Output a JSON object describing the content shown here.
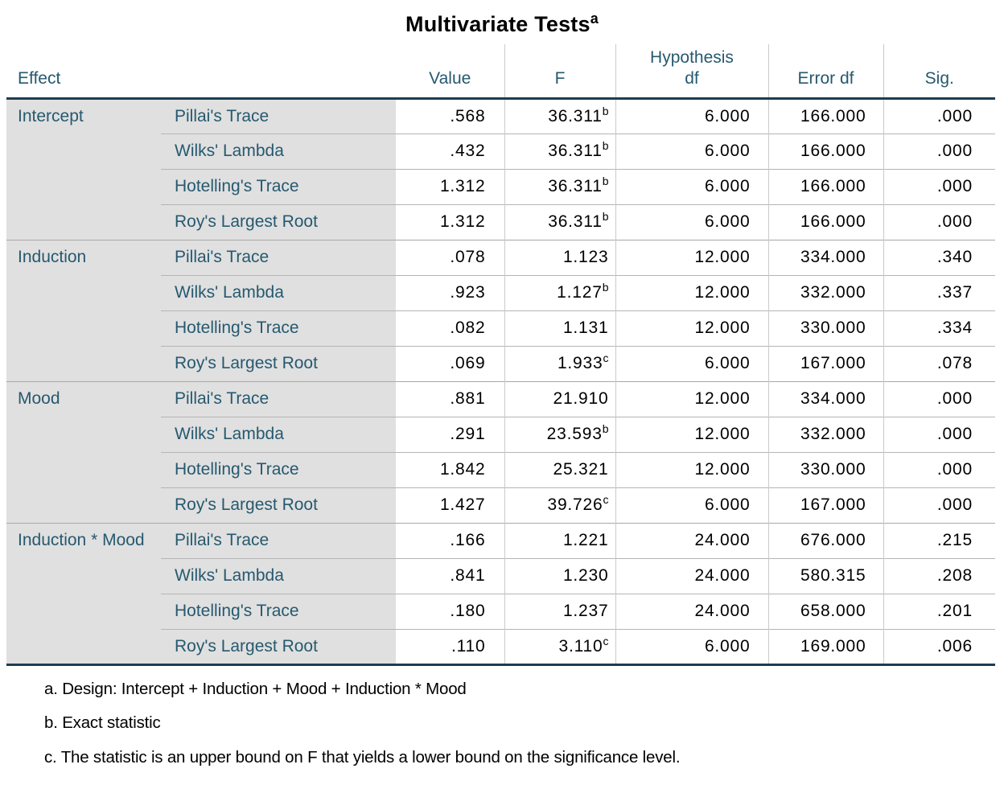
{
  "title": {
    "text": "Multivariate Tests",
    "superscript": "a"
  },
  "columns": {
    "effect": "Effect",
    "value": "Value",
    "f": "F",
    "hypothesis_df_line1": "Hypothesis",
    "hypothesis_df_line2": "df",
    "error_df": "Error df",
    "sig": "Sig."
  },
  "groups": [
    {
      "effect": "Intercept",
      "rows": [
        {
          "test": "Pillai's Trace",
          "value": ".568",
          "f": "36.311",
          "f_sup": "b",
          "hyp_df": "6.000",
          "error_df": "166.000",
          "sig": ".000"
        },
        {
          "test": "Wilks' Lambda",
          "value": ".432",
          "f": "36.311",
          "f_sup": "b",
          "hyp_df": "6.000",
          "error_df": "166.000",
          "sig": ".000"
        },
        {
          "test": "Hotelling's Trace",
          "value": "1.312",
          "f": "36.311",
          "f_sup": "b",
          "hyp_df": "6.000",
          "error_df": "166.000",
          "sig": ".000"
        },
        {
          "test": "Roy's Largest Root",
          "value": "1.312",
          "f": "36.311",
          "f_sup": "b",
          "hyp_df": "6.000",
          "error_df": "166.000",
          "sig": ".000"
        }
      ]
    },
    {
      "effect": "Induction",
      "rows": [
        {
          "test": "Pillai's Trace",
          "value": ".078",
          "f": "1.123",
          "f_sup": "",
          "hyp_df": "12.000",
          "error_df": "334.000",
          "sig": ".340"
        },
        {
          "test": "Wilks' Lambda",
          "value": ".923",
          "f": "1.127",
          "f_sup": "b",
          "hyp_df": "12.000",
          "error_df": "332.000",
          "sig": ".337"
        },
        {
          "test": "Hotelling's Trace",
          "value": ".082",
          "f": "1.131",
          "f_sup": "",
          "hyp_df": "12.000",
          "error_df": "330.000",
          "sig": ".334"
        },
        {
          "test": "Roy's Largest Root",
          "value": ".069",
          "f": "1.933",
          "f_sup": "c",
          "hyp_df": "6.000",
          "error_df": "167.000",
          "sig": ".078"
        }
      ]
    },
    {
      "effect": "Mood",
      "rows": [
        {
          "test": "Pillai's Trace",
          "value": ".881",
          "f": "21.910",
          "f_sup": "",
          "hyp_df": "12.000",
          "error_df": "334.000",
          "sig": ".000"
        },
        {
          "test": "Wilks' Lambda",
          "value": ".291",
          "f": "23.593",
          "f_sup": "b",
          "hyp_df": "12.000",
          "error_df": "332.000",
          "sig": ".000"
        },
        {
          "test": "Hotelling's Trace",
          "value": "1.842",
          "f": "25.321",
          "f_sup": "",
          "hyp_df": "12.000",
          "error_df": "330.000",
          "sig": ".000"
        },
        {
          "test": "Roy's Largest Root",
          "value": "1.427",
          "f": "39.726",
          "f_sup": "c",
          "hyp_df": "6.000",
          "error_df": "167.000",
          "sig": ".000"
        }
      ]
    },
    {
      "effect": "Induction * Mood",
      "rows": [
        {
          "test": "Pillai's Trace",
          "value": ".166",
          "f": "1.221",
          "f_sup": "",
          "hyp_df": "24.000",
          "error_df": "676.000",
          "sig": ".215"
        },
        {
          "test": "Wilks' Lambda",
          "value": ".841",
          "f": "1.230",
          "f_sup": "",
          "hyp_df": "24.000",
          "error_df": "580.315",
          "sig": ".208"
        },
        {
          "test": "Hotelling's Trace",
          "value": ".180",
          "f": "1.237",
          "f_sup": "",
          "hyp_df": "24.000",
          "error_df": "658.000",
          "sig": ".201"
        },
        {
          "test": "Roy's Largest Root",
          "value": ".110",
          "f": "3.110",
          "f_sup": "c",
          "hyp_df": "6.000",
          "error_df": "169.000",
          "sig": ".006"
        }
      ]
    }
  ],
  "footnotes": [
    {
      "marker": "a.",
      "text": "Design: Intercept + Induction + Mood + Induction * Mood"
    },
    {
      "marker": "b.",
      "text": "Exact statistic"
    },
    {
      "marker": "c.",
      "text": "The statistic is an upper bound on F that yields a lower bound on the significance level."
    }
  ],
  "colors": {
    "teal": "#26596f",
    "dark": "#1b3e52",
    "stub": "#e0e0e0",
    "rowline": "#b5b5b5",
    "groupline": "#a8a8a8",
    "vline": "#cacaca"
  }
}
